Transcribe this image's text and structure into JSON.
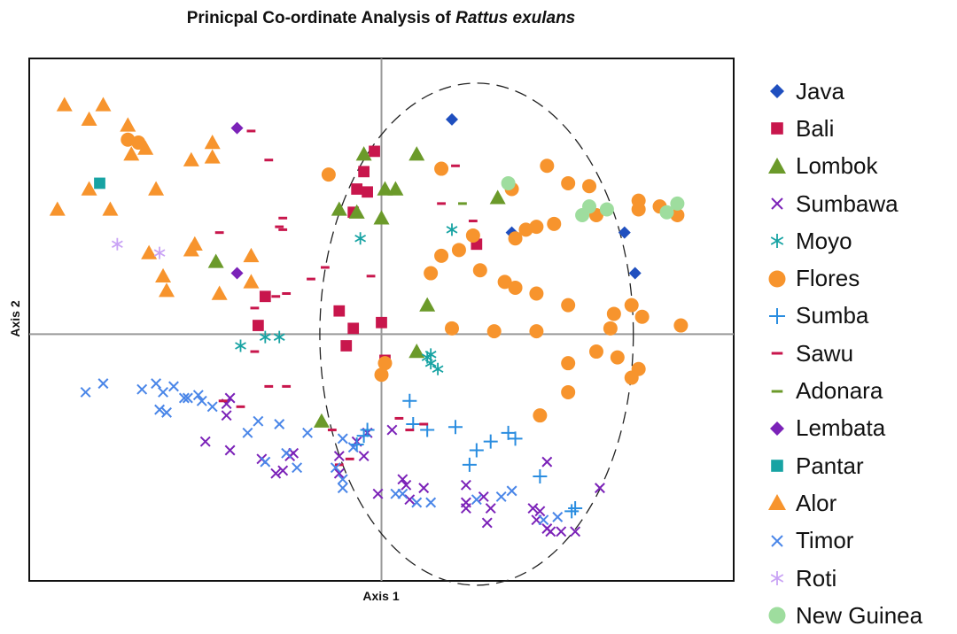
{
  "chart_data": {
    "type": "scatter",
    "title_main": "Prinicpal Co-ordinate Analysis of ",
    "title_species": "Rattus exulans",
    "xlabel": "Axis 1",
    "ylabel": "Axis 2",
    "xlim": [
      -1.0,
      1.0
    ],
    "ylim": [
      -0.85,
      0.95
    ],
    "grid": false,
    "zero_lines": true,
    "confidence_ellipse": {
      "cx": 0.27,
      "cy": 0.0,
      "rx": 0.445,
      "ry": 0.865
    },
    "legend_position": "right",
    "series": [
      {
        "name": "Java",
        "marker": "diamond",
        "color": "#1f4fbf",
        "points": [
          [
            0.2,
            0.74
          ],
          [
            0.37,
            0.35
          ],
          [
            0.69,
            0.35
          ],
          [
            0.72,
            0.21
          ]
        ]
      },
      {
        "name": "Bali",
        "marker": "square",
        "color": "#c8164c",
        "points": [
          [
            -0.02,
            0.63
          ],
          [
            -0.05,
            0.56
          ],
          [
            -0.07,
            0.5
          ],
          [
            -0.04,
            0.49
          ],
          [
            -0.08,
            0.42
          ],
          [
            0.27,
            0.31
          ],
          [
            -0.33,
            0.13
          ],
          [
            -0.12,
            0.08
          ],
          [
            -0.35,
            0.03
          ],
          [
            -0.08,
            0.02
          ],
          [
            -0.1,
            -0.04
          ],
          [
            0.0,
            0.04
          ],
          [
            0.01,
            -0.09
          ]
        ]
      },
      {
        "name": "Lombok",
        "marker": "triangle",
        "color": "#6b9a2a",
        "points": [
          [
            -0.05,
            0.62
          ],
          [
            0.1,
            0.62
          ],
          [
            0.01,
            0.5
          ],
          [
            0.04,
            0.5
          ],
          [
            0.33,
            0.47
          ],
          [
            -0.12,
            0.43
          ],
          [
            -0.07,
            0.42
          ],
          [
            0.0,
            0.4
          ],
          [
            -0.47,
            0.25
          ],
          [
            0.13,
            0.1
          ],
          [
            0.1,
            -0.06
          ],
          [
            -0.17,
            -0.3
          ]
        ]
      },
      {
        "name": "Sumbawa",
        "marker": "x",
        "color": "#7b22b8",
        "points": [
          [
            -0.5,
            -0.37
          ],
          [
            -0.43,
            -0.22
          ],
          [
            -0.44,
            -0.28
          ],
          [
            -0.44,
            -0.24
          ],
          [
            -0.43,
            -0.4
          ],
          [
            -0.34,
            -0.43
          ],
          [
            -0.3,
            -0.48
          ],
          [
            -0.28,
            -0.47
          ],
          [
            -0.26,
            -0.42
          ],
          [
            -0.25,
            -0.41
          ],
          [
            -0.12,
            -0.42
          ],
          [
            -0.07,
            -0.37
          ],
          [
            -0.05,
            -0.42
          ],
          [
            -0.04,
            -0.34
          ],
          [
            0.03,
            -0.33
          ],
          [
            -0.12,
            -0.48
          ],
          [
            -0.01,
            -0.55
          ],
          [
            0.06,
            -0.5
          ],
          [
            0.07,
            -0.52
          ],
          [
            0.08,
            -0.57
          ],
          [
            0.12,
            -0.53
          ],
          [
            0.24,
            -0.52
          ],
          [
            0.29,
            -0.56
          ],
          [
            0.24,
            -0.6
          ],
          [
            0.31,
            -0.6
          ],
          [
            0.24,
            -0.58
          ],
          [
            0.3,
            -0.65
          ],
          [
            0.43,
            -0.6
          ],
          [
            0.45,
            -0.61
          ],
          [
            0.44,
            -0.64
          ],
          [
            0.48,
            -0.68
          ],
          [
            0.47,
            -0.67
          ],
          [
            0.51,
            -0.68
          ],
          [
            0.55,
            -0.68
          ],
          [
            0.47,
            -0.44
          ],
          [
            0.62,
            -0.53
          ]
        ]
      },
      {
        "name": "Moyo",
        "marker": "asterisk",
        "color": "#17a3a3",
        "points": [
          [
            -0.06,
            0.33
          ],
          [
            0.2,
            0.36
          ],
          [
            -0.4,
            -0.04
          ],
          [
            -0.33,
            -0.01
          ],
          [
            -0.29,
            -0.01
          ],
          [
            0.13,
            -0.08
          ],
          [
            0.14,
            -0.07
          ],
          [
            0.16,
            -0.12
          ],
          [
            0.14,
            -0.1
          ]
        ]
      },
      {
        "name": "Flores",
        "marker": "circle",
        "color": "#f7942d",
        "points": [
          [
            -0.72,
            0.67
          ],
          [
            -0.69,
            0.66
          ],
          [
            -0.15,
            0.55
          ],
          [
            0.17,
            0.57
          ],
          [
            0.47,
            0.58
          ],
          [
            0.37,
            0.5
          ],
          [
            0.53,
            0.52
          ],
          [
            0.59,
            0.51
          ],
          [
            0.73,
            0.46
          ],
          [
            0.79,
            0.44
          ],
          [
            0.84,
            0.41
          ],
          [
            0.61,
            0.41
          ],
          [
            0.73,
            0.43
          ],
          [
            0.49,
            0.38
          ],
          [
            0.44,
            0.37
          ],
          [
            0.41,
            0.36
          ],
          [
            0.38,
            0.33
          ],
          [
            0.26,
            0.34
          ],
          [
            0.22,
            0.29
          ],
          [
            0.17,
            0.27
          ],
          [
            0.14,
            0.21
          ],
          [
            0.28,
            0.22
          ],
          [
            0.35,
            0.18
          ],
          [
            0.38,
            0.16
          ],
          [
            0.44,
            0.14
          ],
          [
            0.53,
            0.1
          ],
          [
            0.66,
            0.07
          ],
          [
            0.71,
            0.1
          ],
          [
            0.74,
            0.06
          ],
          [
            0.85,
            0.03
          ],
          [
            0.65,
            0.02
          ],
          [
            0.44,
            0.01
          ],
          [
            0.32,
            0.01
          ],
          [
            0.2,
            0.02
          ],
          [
            0.61,
            -0.06
          ],
          [
            0.53,
            -0.1
          ],
          [
            0.67,
            -0.08
          ],
          [
            0.73,
            -0.12
          ],
          [
            0.71,
            -0.15
          ],
          [
            0.53,
            -0.2
          ],
          [
            0.01,
            -0.1
          ],
          [
            0.0,
            -0.14
          ],
          [
            0.45,
            -0.28
          ]
        ]
      },
      {
        "name": "Sumba",
        "marker": "plus",
        "color": "#2a8de0",
        "points": [
          [
            0.08,
            -0.23
          ],
          [
            0.09,
            -0.31
          ],
          [
            0.13,
            -0.33
          ],
          [
            0.21,
            -0.32
          ],
          [
            0.25,
            -0.45
          ],
          [
            0.27,
            -0.4
          ],
          [
            0.31,
            -0.37
          ],
          [
            0.36,
            -0.34
          ],
          [
            0.45,
            -0.49
          ],
          [
            0.38,
            -0.36
          ],
          [
            -0.07,
            -0.38
          ],
          [
            -0.05,
            -0.35
          ],
          [
            -0.04,
            -0.33
          ],
          [
            0.55,
            -0.6
          ],
          [
            0.54,
            -0.61
          ]
        ]
      },
      {
        "name": "Sawu",
        "marker": "dash",
        "color": "#c8164c",
        "points": [
          [
            -0.37,
            0.7
          ],
          [
            -0.32,
            0.6
          ],
          [
            0.17,
            0.45
          ],
          [
            0.21,
            0.58
          ],
          [
            -0.28,
            0.4
          ],
          [
            -0.28,
            0.36
          ],
          [
            0.26,
            0.39
          ],
          [
            -0.29,
            0.37
          ],
          [
            -0.46,
            0.35
          ],
          [
            -0.16,
            0.23
          ],
          [
            -0.2,
            0.19
          ],
          [
            -0.3,
            0.13
          ],
          [
            -0.27,
            0.14
          ],
          [
            -0.03,
            0.2
          ],
          [
            -0.36,
            0.09
          ],
          [
            -0.36,
            -0.06
          ],
          [
            -0.32,
            -0.18
          ],
          [
            -0.27,
            -0.18
          ],
          [
            -0.4,
            -0.25
          ],
          [
            -0.45,
            -0.23
          ],
          [
            0.05,
            -0.29
          ],
          [
            0.08,
            -0.33
          ],
          [
            0.12,
            -0.31
          ],
          [
            -0.14,
            -0.33
          ],
          [
            -0.09,
            -0.43
          ],
          [
            -0.12,
            -0.45
          ]
        ]
      },
      {
        "name": "Adonara",
        "marker": "dash",
        "color": "#6b9a2a",
        "points": [
          [
            0.23,
            0.45
          ]
        ]
      },
      {
        "name": "Lembata",
        "marker": "diamond",
        "color": "#7b22b8",
        "points": [
          [
            -0.41,
            0.71
          ],
          [
            -0.41,
            0.21
          ]
        ]
      },
      {
        "name": "Pantar",
        "marker": "square",
        "color": "#17a3a3",
        "points": [
          [
            -0.8,
            0.52
          ]
        ]
      },
      {
        "name": "Alor",
        "marker": "triangle",
        "color": "#f7942d",
        "points": [
          [
            -0.9,
            0.79
          ],
          [
            -0.79,
            0.79
          ],
          [
            -0.72,
            0.72
          ],
          [
            -0.83,
            0.74
          ],
          [
            -0.67,
            0.64
          ],
          [
            -0.48,
            0.66
          ],
          [
            -0.54,
            0.6
          ],
          [
            -0.71,
            0.62
          ],
          [
            -0.48,
            0.61
          ],
          [
            -0.83,
            0.5
          ],
          [
            -0.64,
            0.5
          ],
          [
            -0.92,
            0.43
          ],
          [
            -0.77,
            0.43
          ],
          [
            -0.53,
            0.31
          ],
          [
            -0.54,
            0.29
          ],
          [
            -0.66,
            0.28
          ],
          [
            -0.37,
            0.27
          ],
          [
            -0.62,
            0.2
          ],
          [
            -0.61,
            0.15
          ],
          [
            -0.46,
            0.14
          ],
          [
            -0.37,
            0.18
          ]
        ]
      },
      {
        "name": "Timor",
        "marker": "x",
        "color": "#4a86e8",
        "points": [
          [
            -0.84,
            -0.2
          ],
          [
            -0.79,
            -0.17
          ],
          [
            -0.68,
            -0.19
          ],
          [
            -0.64,
            -0.17
          ],
          [
            -0.62,
            -0.2
          ],
          [
            -0.59,
            -0.18
          ],
          [
            -0.55,
            -0.22
          ],
          [
            -0.52,
            -0.21
          ],
          [
            -0.51,
            -0.23
          ],
          [
            -0.48,
            -0.25
          ],
          [
            -0.35,
            -0.3
          ],
          [
            -0.63,
            -0.26
          ],
          [
            -0.61,
            -0.27
          ],
          [
            -0.56,
            -0.22
          ],
          [
            -0.38,
            -0.34
          ],
          [
            -0.29,
            -0.31
          ],
          [
            -0.21,
            -0.34
          ],
          [
            -0.24,
            -0.46
          ],
          [
            -0.27,
            -0.41
          ],
          [
            -0.11,
            -0.36
          ],
          [
            -0.08,
            -0.39
          ],
          [
            -0.13,
            -0.46
          ],
          [
            -0.11,
            -0.5
          ],
          [
            -0.11,
            -0.53
          ],
          [
            0.04,
            -0.55
          ],
          [
            0.06,
            -0.55
          ],
          [
            0.1,
            -0.58
          ],
          [
            0.14,
            -0.58
          ],
          [
            0.27,
            -0.57
          ],
          [
            0.34,
            -0.56
          ],
          [
            0.37,
            -0.54
          ],
          [
            0.46,
            -0.64
          ],
          [
            0.5,
            -0.63
          ],
          [
            -0.33,
            -0.44
          ]
        ]
      },
      {
        "name": "Roti",
        "marker": "asterisk",
        "color": "#c9a3f5",
        "points": [
          [
            -0.75,
            0.31
          ],
          [
            -0.63,
            0.28
          ]
        ]
      },
      {
        "name": "New Guinea",
        "marker": "circle",
        "color": "#9edd9e",
        "points": [
          [
            0.36,
            0.52
          ],
          [
            0.57,
            0.41
          ],
          [
            0.59,
            0.44
          ],
          [
            0.64,
            0.43
          ],
          [
            0.81,
            0.42
          ],
          [
            0.84,
            0.45
          ]
        ]
      }
    ]
  }
}
